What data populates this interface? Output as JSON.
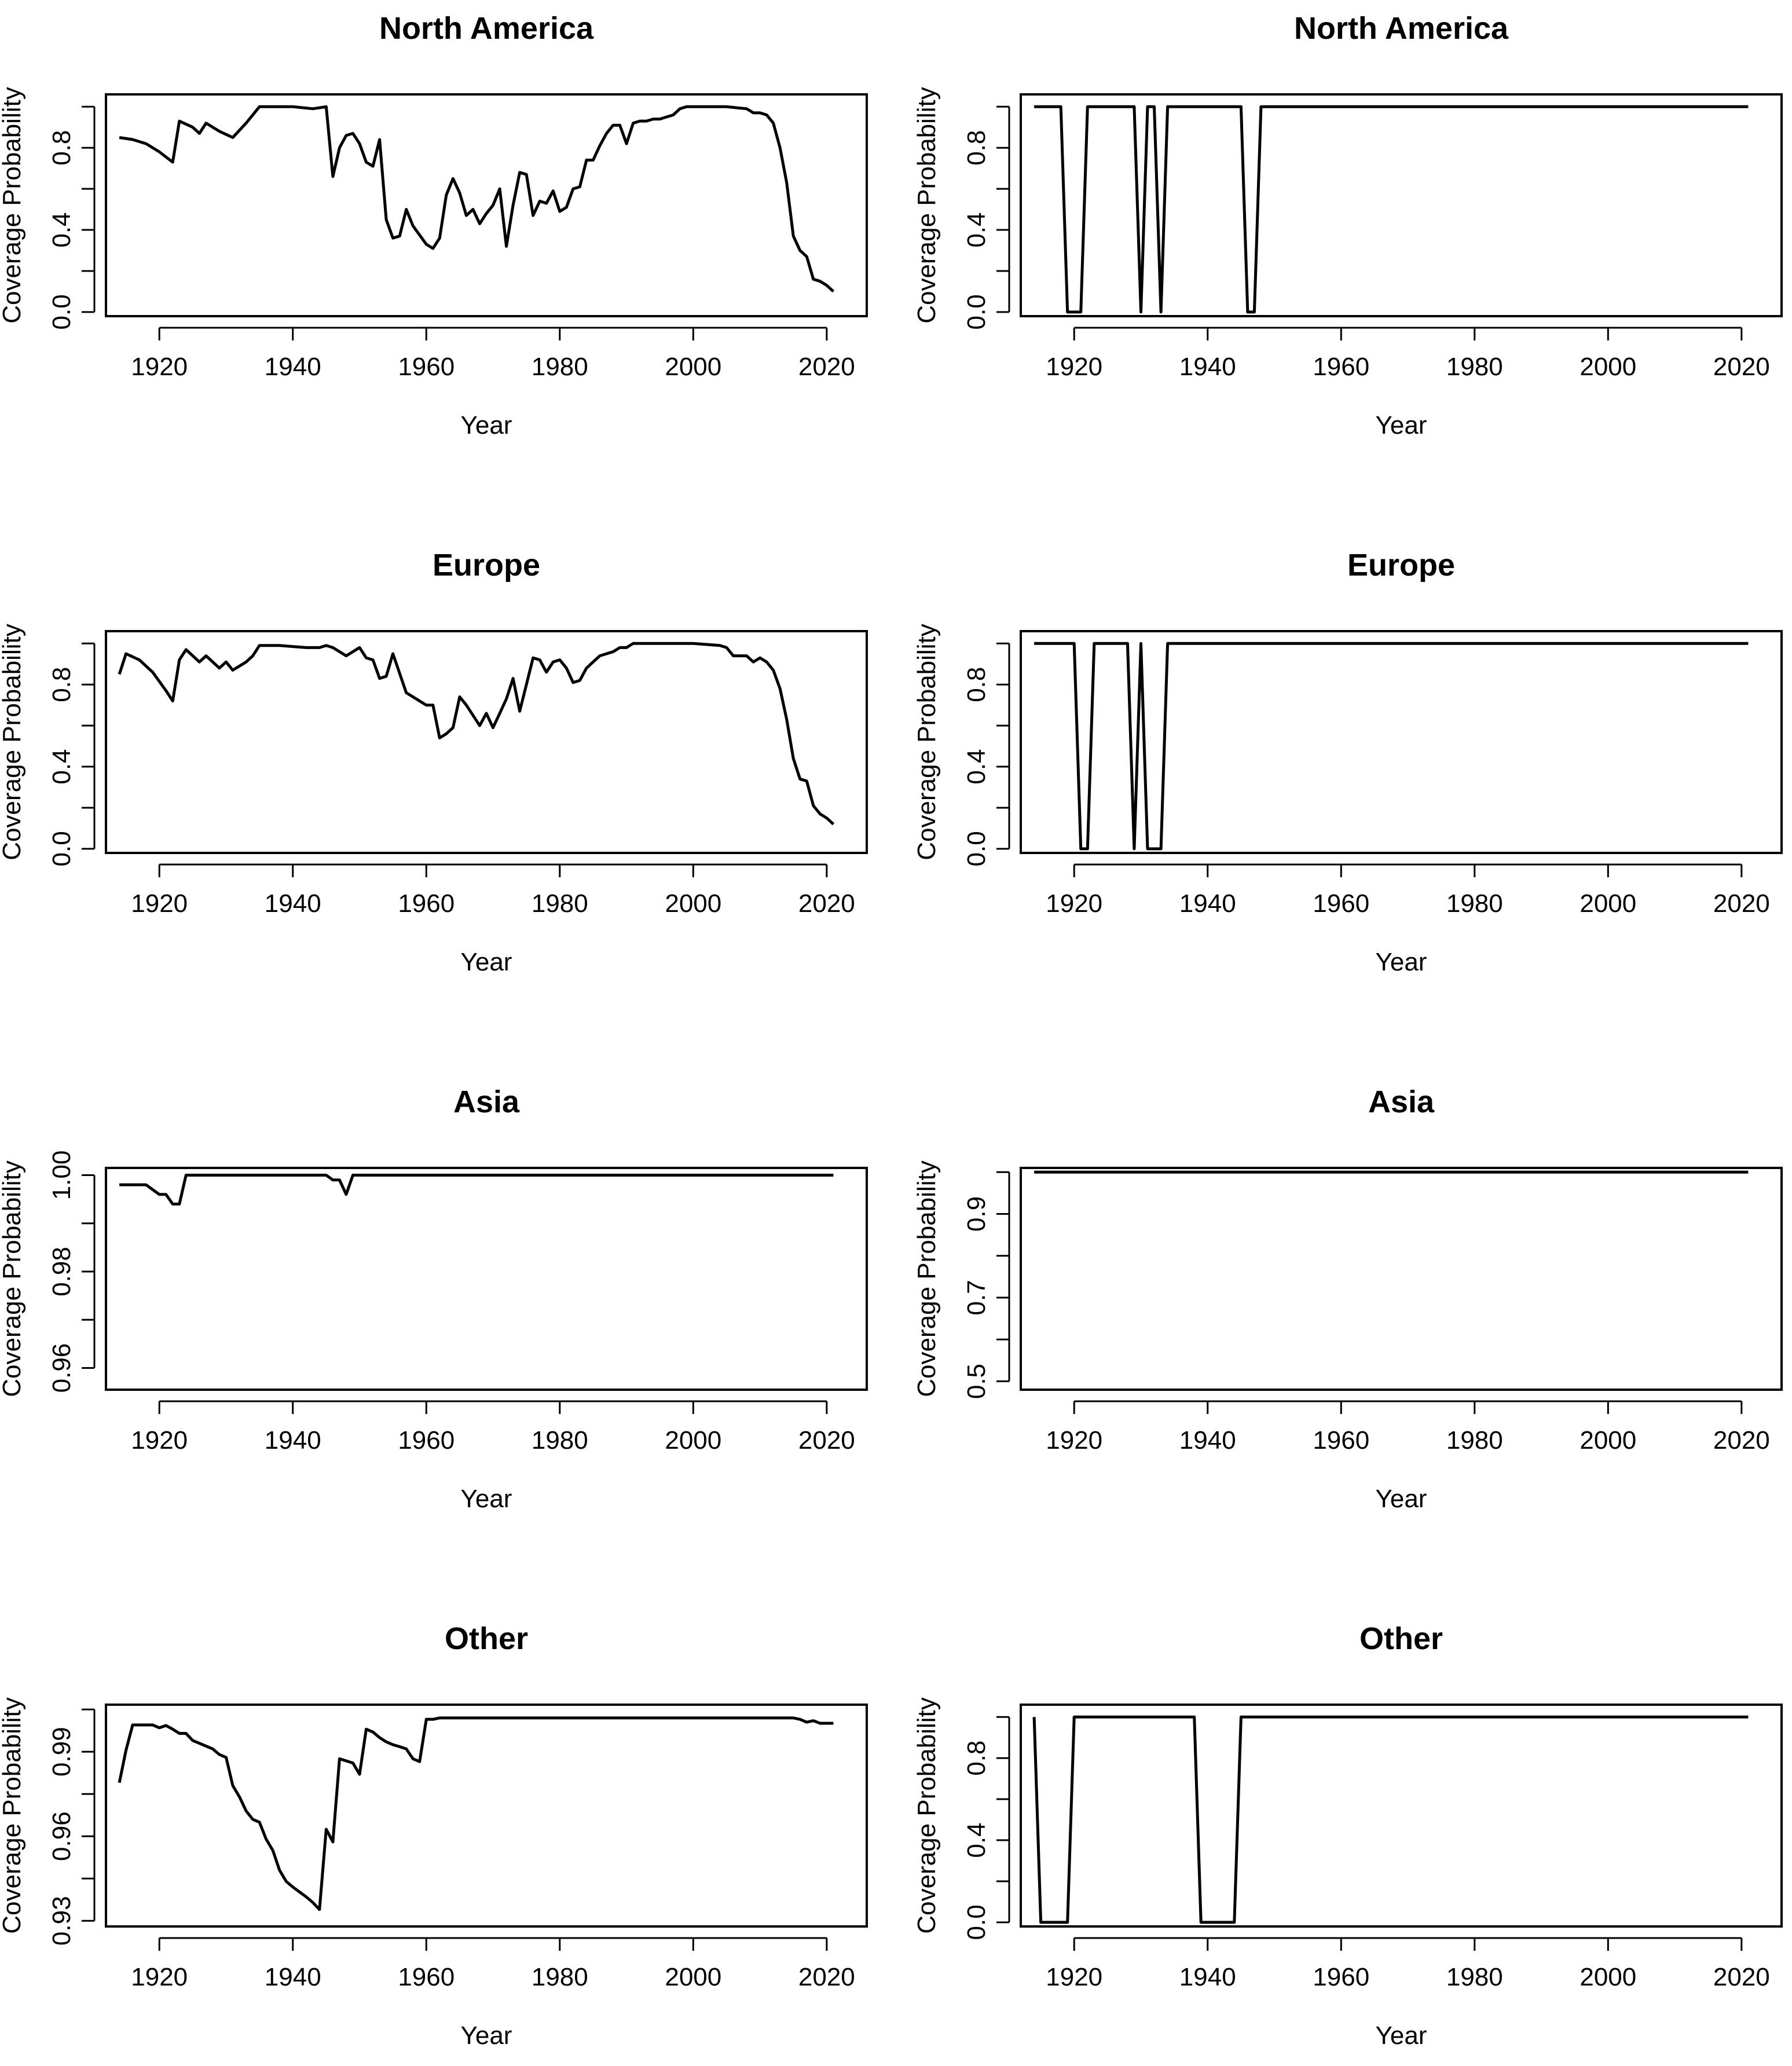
{
  "chart_data": [
    {
      "type": "line",
      "title": "North America",
      "xlabel": "Year",
      "ylabel": "Coverage Probability",
      "xlim": [
        1912,
        2026
      ],
      "ylim": [
        -0.02,
        1.06
      ],
      "xticks": [
        "1920",
        "1940",
        "1960",
        "1980",
        "2000",
        "2020"
      ],
      "yticks": [
        "0.0",
        "0.4",
        "0.8"
      ],
      "ytick_values": [
        0.0,
        0.4,
        0.8
      ],
      "yminor": [
        0.2,
        0.6,
        1.0
      ],
      "x": [
        1914,
        1916,
        1918,
        1920,
        1922,
        1923,
        1925,
        1926,
        1927,
        1929,
        1931,
        1933,
        1935,
        1937,
        1940,
        1943,
        1945,
        1946,
        1947,
        1948,
        1949,
        1950,
        1951,
        1952,
        1953,
        1954,
        1955,
        1956,
        1957,
        1958,
        1960,
        1961,
        1962,
        1963,
        1964,
        1965,
        1966,
        1967,
        1968,
        1969,
        1970,
        1971,
        1972,
        1973,
        1974,
        1975,
        1976,
        1977,
        1978,
        1979,
        1980,
        1981,
        1982,
        1983,
        1984,
        1985,
        1986,
        1987,
        1988,
        1989,
        1990,
        1991,
        1992,
        1993,
        1994,
        1995,
        1996,
        1997,
        1998,
        1999,
        2000,
        2002,
        2005,
        2008,
        2009,
        2010,
        2011,
        2012,
        2013,
        2014,
        2015,
        2016,
        2017,
        2018,
        2019,
        2020,
        2021
      ],
      "values": [
        0.85,
        0.84,
        0.82,
        0.78,
        0.73,
        0.93,
        0.9,
        0.87,
        0.92,
        0.88,
        0.85,
        0.92,
        1.0,
        1.0,
        1.0,
        0.99,
        1.0,
        0.66,
        0.8,
        0.86,
        0.87,
        0.82,
        0.73,
        0.71,
        0.84,
        0.45,
        0.36,
        0.37,
        0.5,
        0.42,
        0.33,
        0.31,
        0.36,
        0.57,
        0.65,
        0.58,
        0.47,
        0.5,
        0.43,
        0.48,
        0.52,
        0.6,
        0.32,
        0.52,
        0.68,
        0.67,
        0.47,
        0.54,
        0.53,
        0.59,
        0.49,
        0.51,
        0.6,
        0.61,
        0.74,
        0.74,
        0.81,
        0.87,
        0.91,
        0.91,
        0.82,
        0.92,
        0.93,
        0.93,
        0.94,
        0.94,
        0.95,
        0.96,
        0.99,
        1.0,
        1.0,
        1.0,
        1.0,
        0.99,
        0.97,
        0.97,
        0.96,
        0.92,
        0.8,
        0.63,
        0.37,
        0.3,
        0.27,
        0.16,
        0.15,
        0.13,
        0.1
      ]
    },
    {
      "type": "line",
      "title": "North America",
      "xlabel": "Year",
      "ylabel": "Coverage Probability",
      "xlim": [
        1912,
        2026
      ],
      "ylim": [
        -0.02,
        1.06
      ],
      "xticks": [
        "1920",
        "1940",
        "1960",
        "1980",
        "2000",
        "2020"
      ],
      "yticks": [
        "0.0",
        "0.4",
        "0.8"
      ],
      "ytick_values": [
        0.0,
        0.4,
        0.8
      ],
      "yminor": [
        0.2,
        0.6,
        1.0
      ],
      "x": [
        1914,
        1918,
        1919,
        1921,
        1922,
        1929,
        1930,
        1931,
        1932,
        1933,
        1934,
        1935,
        1945,
        1946,
        1947,
        1948,
        2021
      ],
      "values": [
        1.0,
        1.0,
        0.0,
        0.0,
        1.0,
        1.0,
        0.0,
        1.0,
        1.0,
        0.0,
        1.0,
        1.0,
        1.0,
        0.0,
        0.0,
        1.0,
        1.0
      ]
    },
    {
      "type": "line",
      "title": "Europe",
      "xlabel": "Year",
      "ylabel": "Coverage Probability",
      "xlim": [
        1912,
        2026
      ],
      "ylim": [
        -0.02,
        1.06
      ],
      "xticks": [
        "1920",
        "1940",
        "1960",
        "1980",
        "2000",
        "2020"
      ],
      "yticks": [
        "0.0",
        "0.4",
        "0.8"
      ],
      "ytick_values": [
        0.0,
        0.4,
        0.8
      ],
      "yminor": [
        0.2,
        0.6,
        1.0
      ],
      "x": [
        1914,
        1915,
        1917,
        1919,
        1921,
        1922,
        1923,
        1924,
        1926,
        1927,
        1929,
        1930,
        1931,
        1933,
        1934,
        1935,
        1938,
        1942,
        1944,
        1945,
        1946,
        1948,
        1950,
        1951,
        1952,
        1953,
        1954,
        1955,
        1957,
        1959,
        1960,
        1961,
        1962,
        1963,
        1964,
        1965,
        1966,
        1967,
        1968,
        1969,
        1970,
        1971,
        1972,
        1973,
        1974,
        1975,
        1976,
        1977,
        1978,
        1979,
        1980,
        1981,
        1982,
        1983,
        1984,
        1986,
        1988,
        1989,
        1990,
        1991,
        1993,
        1996,
        2000,
        2004,
        2005,
        2006,
        2008,
        2009,
        2010,
        2011,
        2012,
        2013,
        2014,
        2015,
        2016,
        2017,
        2018,
        2019,
        2020,
        2021
      ],
      "values": [
        0.85,
        0.95,
        0.92,
        0.86,
        0.77,
        0.72,
        0.92,
        0.97,
        0.91,
        0.94,
        0.88,
        0.91,
        0.87,
        0.91,
        0.94,
        0.99,
        0.99,
        0.98,
        0.98,
        0.99,
        0.98,
        0.94,
        0.98,
        0.93,
        0.92,
        0.83,
        0.84,
        0.95,
        0.76,
        0.72,
        0.7,
        0.7,
        0.54,
        0.56,
        0.59,
        0.74,
        0.7,
        0.65,
        0.6,
        0.66,
        0.59,
        0.66,
        0.73,
        0.83,
        0.67,
        0.8,
        0.93,
        0.92,
        0.86,
        0.91,
        0.92,
        0.88,
        0.81,
        0.82,
        0.88,
        0.94,
        0.96,
        0.98,
        0.98,
        1.0,
        1.0,
        1.0,
        1.0,
        0.99,
        0.98,
        0.94,
        0.94,
        0.91,
        0.93,
        0.91,
        0.87,
        0.78,
        0.63,
        0.44,
        0.34,
        0.33,
        0.21,
        0.17,
        0.15,
        0.12
      ]
    },
    {
      "type": "line",
      "title": "Europe",
      "xlabel": "Year",
      "ylabel": "Coverage Probability",
      "xlim": [
        1912,
        2026
      ],
      "ylim": [
        -0.02,
        1.06
      ],
      "xticks": [
        "1920",
        "1940",
        "1960",
        "1980",
        "2000",
        "2020"
      ],
      "yticks": [
        "0.0",
        "0.4",
        "0.8"
      ],
      "ytick_values": [
        0.0,
        0.4,
        0.8
      ],
      "yminor": [
        0.2,
        0.6,
        1.0
      ],
      "x": [
        1914,
        1920,
        1921,
        1922,
        1923,
        1928,
        1929,
        1930,
        1931,
        1933,
        1934,
        2021
      ],
      "values": [
        1.0,
        1.0,
        0.0,
        0.0,
        1.0,
        1.0,
        0.0,
        1.0,
        0.0,
        0.0,
        1.0,
        1.0
      ]
    },
    {
      "type": "line",
      "title": "Asia",
      "xlabel": "Year",
      "ylabel": "Coverage Probability",
      "xlim": [
        1912,
        2026
      ],
      "ylim": [
        0.9555,
        1.0015
      ],
      "xticks": [
        "1920",
        "1940",
        "1960",
        "1980",
        "2000",
        "2020"
      ],
      "yticks": [
        "0.96",
        "0.98",
        "1.00"
      ],
      "ytick_values": [
        0.96,
        0.98,
        1.0
      ],
      "yminor": [
        0.97,
        0.99
      ],
      "x": [
        1914,
        1918,
        1920,
        1921,
        1922,
        1923,
        1924,
        1945,
        1946,
        1947,
        1948,
        1949,
        2021
      ],
      "values": [
        0.998,
        0.998,
        0.996,
        0.996,
        0.994,
        0.994,
        1.0,
        1.0,
        0.999,
        0.999,
        0.996,
        1.0,
        1.0
      ]
    },
    {
      "type": "line",
      "title": "Asia",
      "xlabel": "Year",
      "ylabel": "Coverage Probability",
      "xlim": [
        1912,
        2026
      ],
      "ylim": [
        0.48,
        1.01
      ],
      "xticks": [
        "1920",
        "1940",
        "1960",
        "1980",
        "2000",
        "2020"
      ],
      "yticks": [
        "0.5",
        "0.7",
        "0.9"
      ],
      "ytick_values": [
        0.5,
        0.7,
        0.9
      ],
      "yminor": [
        0.6,
        0.8,
        1.0
      ],
      "x": [
        1914,
        2021
      ],
      "values": [
        1.0,
        1.0
      ]
    },
    {
      "type": "line",
      "title": "Other",
      "xlabel": "Year",
      "ylabel": "Coverage Probability",
      "xlim": [
        1912,
        2026
      ],
      "ylim": [
        0.928,
        1.0067
      ],
      "xticks": [
        "1920",
        "1940",
        "1960",
        "1980",
        "2000",
        "2020"
      ],
      "yticks": [
        "0.93",
        "0.96",
        "0.99"
      ],
      "ytick_values": [
        0.93,
        0.96,
        0.99
      ],
      "yminor": [
        0.945,
        0.975,
        1.005
      ],
      "x": [
        1914,
        1915,
        1916,
        1919,
        1920,
        1921,
        1922,
        1923,
        1924,
        1925,
        1926,
        1928,
        1929,
        1930,
        1931,
        1932,
        1933,
        1934,
        1935,
        1936,
        1937,
        1938,
        1939,
        1940,
        1942,
        1943,
        1944,
        1945,
        1946,
        1947,
        1949,
        1950,
        1951,
        1952,
        1953,
        1954,
        1955,
        1956,
        1957,
        1958,
        1959,
        1960,
        1961,
        1962,
        2015,
        2016,
        2017,
        2018,
        2019,
        2020,
        2021
      ],
      "values": [
        0.979,
        0.9905,
        0.9995,
        0.9995,
        0.9985,
        0.9993,
        0.998,
        0.9965,
        0.9965,
        0.994,
        0.993,
        0.991,
        0.989,
        0.988,
        0.978,
        0.974,
        0.969,
        0.966,
        0.965,
        0.959,
        0.955,
        0.948,
        0.944,
        0.942,
        0.9385,
        0.9365,
        0.934,
        0.9625,
        0.958,
        0.9875,
        0.986,
        0.982,
        0.998,
        0.997,
        0.995,
        0.9935,
        0.9925,
        0.9918,
        0.991,
        0.9875,
        0.9865,
        1.0015,
        1.0015,
        1.002,
        1.002,
        1.0015,
        1.0005,
        1.001,
        1.0001,
        1.0001,
        1.0001
      ]
    },
    {
      "type": "line",
      "title": "Other",
      "xlabel": "Year",
      "ylabel": "Coverage Probability",
      "xlim": [
        1912,
        2026
      ],
      "ylim": [
        -0.02,
        1.06
      ],
      "xticks": [
        "1920",
        "1940",
        "1960",
        "1980",
        "2000",
        "2020"
      ],
      "yticks": [
        "0.0",
        "0.4",
        "0.8"
      ],
      "ytick_values": [
        0.0,
        0.4,
        0.8
      ],
      "yminor": [
        0.2,
        0.6,
        1.0
      ],
      "x": [
        1914,
        1915,
        1919,
        1920,
        1938,
        1939,
        1944,
        1945,
        2021
      ],
      "values": [
        1.0,
        0.0,
        0.0,
        1.0,
        1.0,
        0.0,
        0.0,
        1.0,
        1.0
      ]
    }
  ]
}
